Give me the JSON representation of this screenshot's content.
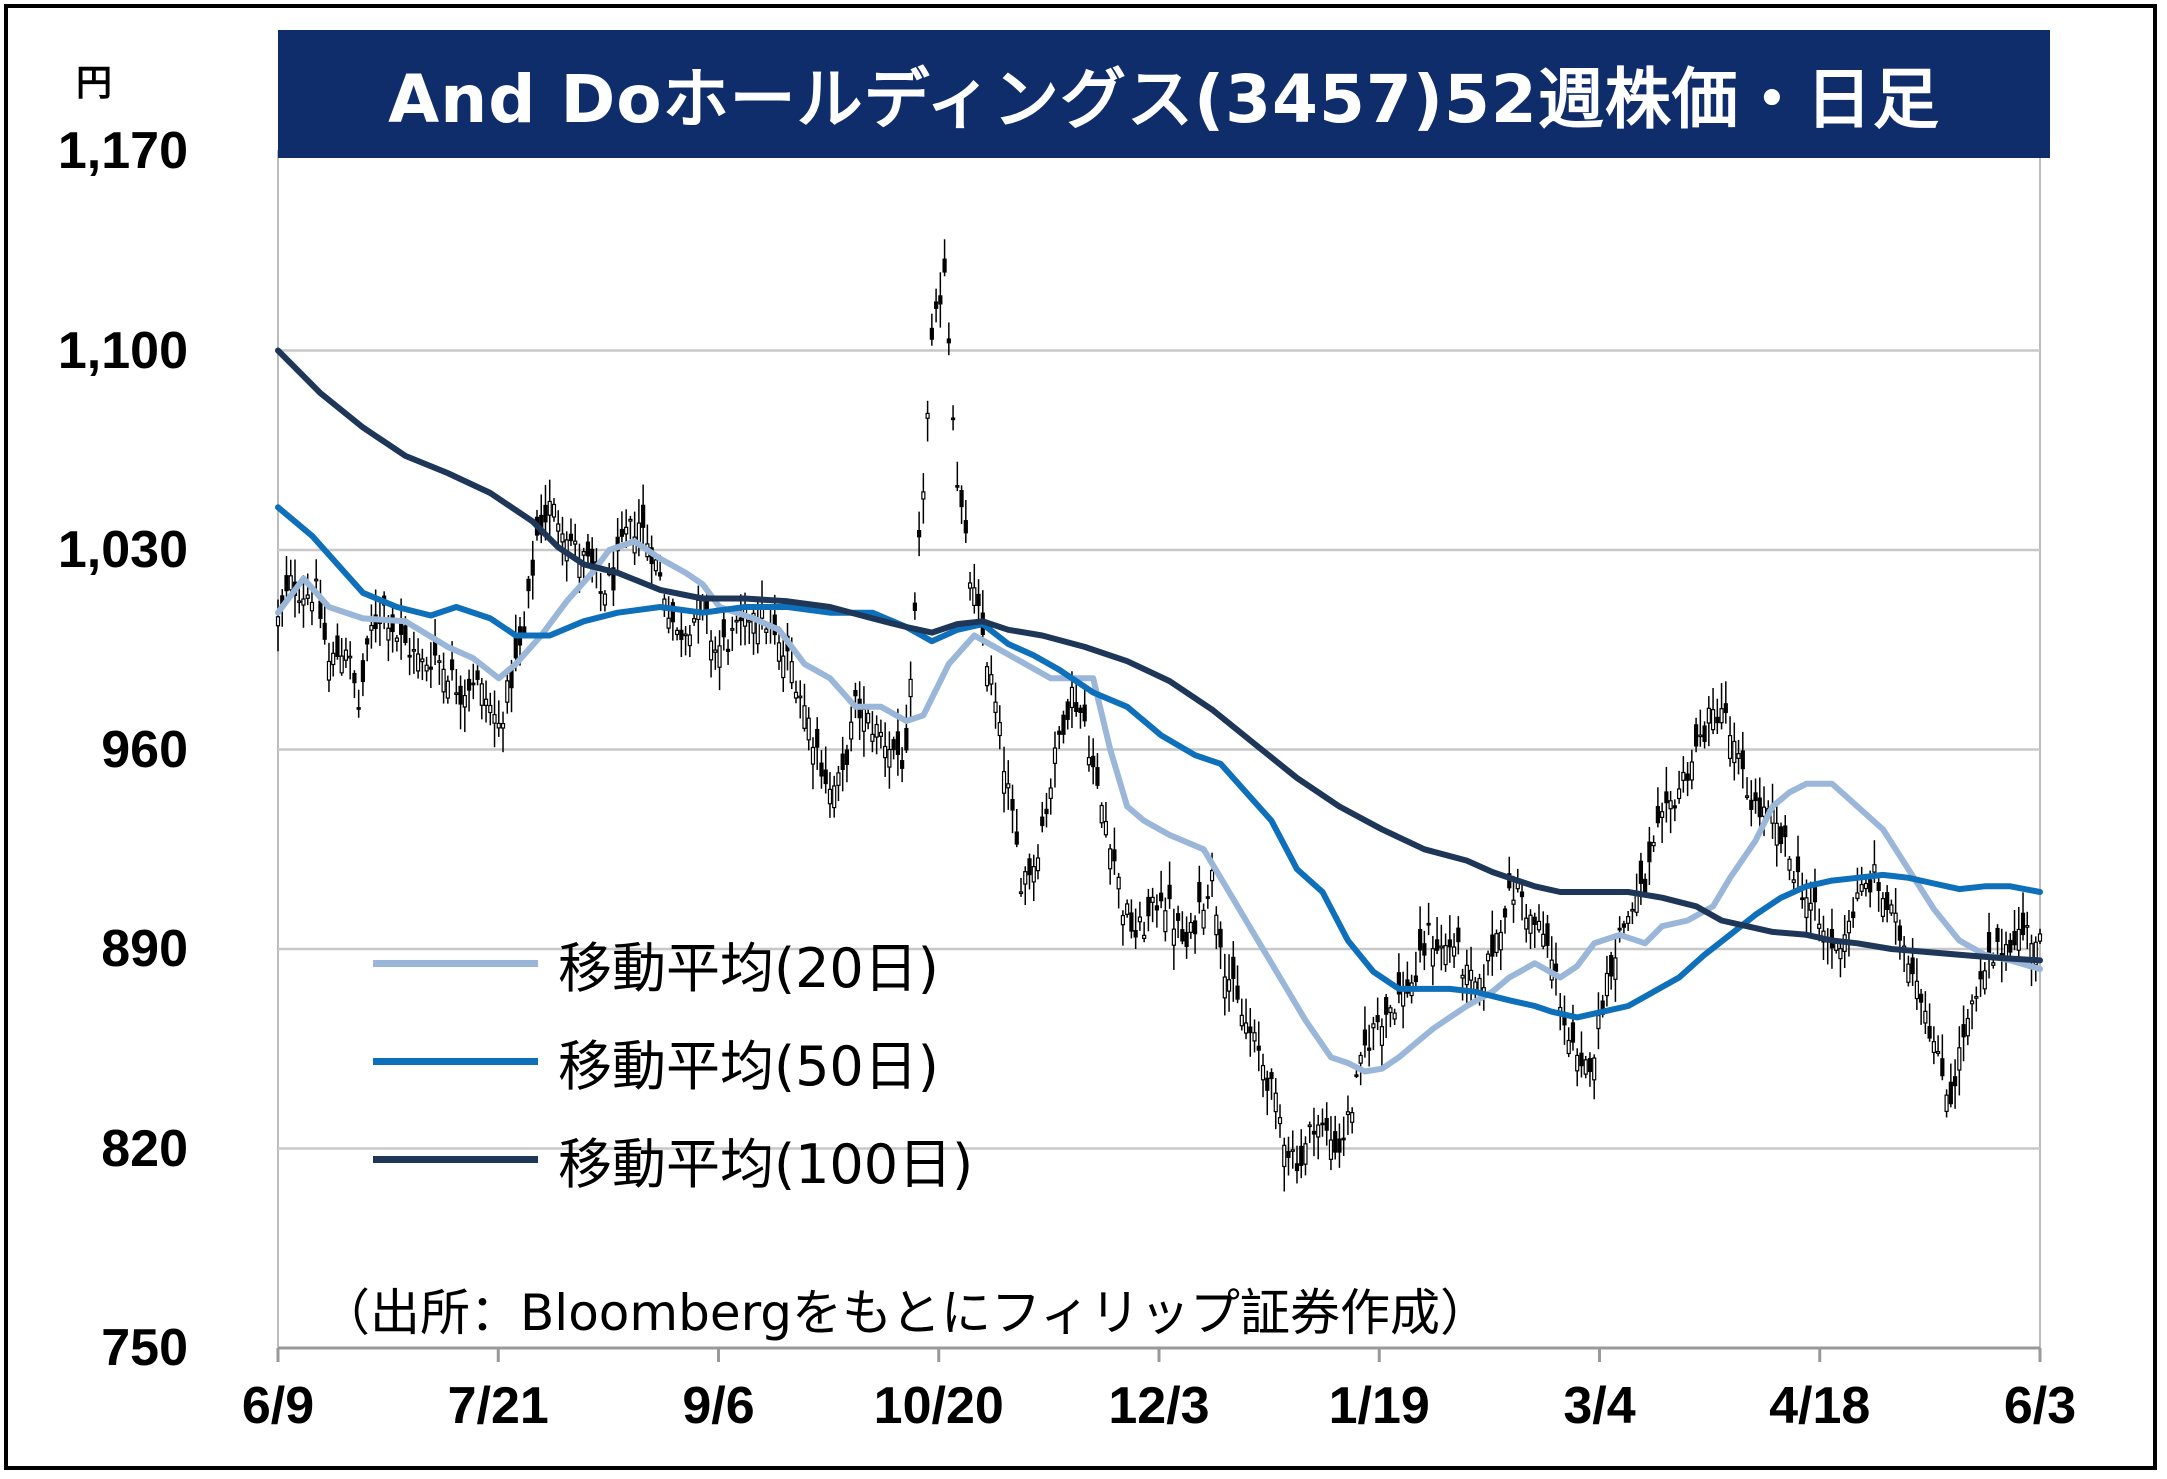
{
  "chart_data": {
    "type": "candlestick",
    "title": "And Doホールディングス(3457)52週株価・日足",
    "ylabel": "円",
    "ylim": [
      750,
      1170
    ],
    "yticks": [
      1170,
      1100,
      1030,
      960,
      890,
      820,
      750
    ],
    "ytick_labels": [
      "1,170",
      "1,100",
      "1,030",
      "960",
      "890",
      "820",
      "750"
    ],
    "xtick_labels": [
      "6/9",
      "7/21",
      "9/6",
      "10/20",
      "12/3",
      "1/19",
      "3/4",
      "4/18",
      "6/3"
    ],
    "grid": true,
    "legend_position": "lower-left",
    "source": "（出所：Bloombergをもとにフィリップ証券作成）",
    "close_anchors": [
      [
        0,
        1005
      ],
      [
        3,
        1018
      ],
      [
        6,
        1015
      ],
      [
        9,
        1015
      ],
      [
        12,
        990
      ],
      [
        16,
        997
      ],
      [
        19,
        975
      ],
      [
        22,
        1002
      ],
      [
        25,
        1010
      ],
      [
        28,
        1000
      ],
      [
        31,
        995
      ],
      [
        34,
        990
      ],
      [
        37,
        993
      ],
      [
        40,
        988
      ],
      [
        43,
        980
      ],
      [
        46,
        985
      ],
      [
        49,
        978
      ],
      [
        52,
        968
      ],
      [
        55,
        985
      ],
      [
        58,
        1000
      ],
      [
        61,
        1035
      ],
      [
        64,
        1045
      ],
      [
        67,
        1040
      ],
      [
        70,
        1030
      ],
      [
        73,
        1025
      ],
      [
        76,
        1015
      ],
      [
        79,
        1020
      ],
      [
        82,
        1035
      ],
      [
        85,
        1040
      ],
      [
        88,
        1030
      ],
      [
        91,
        1015
      ],
      [
        94,
        1000
      ],
      [
        97,
        1005
      ],
      [
        100,
        1010
      ],
      [
        103,
        995
      ],
      [
        106,
        998
      ],
      [
        109,
        1002
      ],
      [
        112,
        1010
      ],
      [
        115,
        1005
      ],
      [
        118,
        995
      ],
      [
        121,
        990
      ],
      [
        124,
        975
      ],
      [
        127,
        960
      ],
      [
        130,
        945
      ],
      [
        133,
        950
      ],
      [
        136,
        975
      ],
      [
        139,
        970
      ],
      [
        142,
        965
      ],
      [
        145,
        960
      ],
      [
        148,
        955
      ],
      [
        151,
        1030
      ],
      [
        154,
        1100
      ],
      [
        157,
        1130
      ],
      [
        160,
        1055
      ],
      [
        163,
        1020
      ],
      [
        166,
        1000
      ],
      [
        169,
        975
      ],
      [
        172,
        945
      ],
      [
        175,
        915
      ],
      [
        178,
        920
      ],
      [
        181,
        940
      ],
      [
        184,
        965
      ],
      [
        187,
        980
      ],
      [
        190,
        970
      ],
      [
        193,
        945
      ],
      [
        196,
        930
      ],
      [
        199,
        905
      ],
      [
        202,
        895
      ],
      [
        205,
        900
      ],
      [
        208,
        910
      ],
      [
        211,
        900
      ],
      [
        214,
        890
      ],
      [
        217,
        905
      ],
      [
        220,
        915
      ],
      [
        223,
        885
      ],
      [
        226,
        870
      ],
      [
        229,
        860
      ],
      [
        232,
        850
      ],
      [
        235,
        835
      ],
      [
        238,
        820
      ],
      [
        241,
        815
      ],
      [
        244,
        830
      ],
      [
        247,
        825
      ],
      [
        250,
        820
      ],
      [
        253,
        835
      ],
      [
        256,
        855
      ],
      [
        259,
        865
      ],
      [
        262,
        870
      ],
      [
        265,
        875
      ],
      [
        268,
        880
      ],
      [
        271,
        895
      ],
      [
        274,
        890
      ],
      [
        277,
        892
      ],
      [
        280,
        880
      ],
      [
        283,
        875
      ],
      [
        286,
        890
      ],
      [
        289,
        905
      ],
      [
        292,
        912
      ],
      [
        295,
        900
      ],
      [
        298,
        895
      ],
      [
        301,
        880
      ],
      [
        304,
        858
      ],
      [
        307,
        845
      ],
      [
        310,
        855
      ],
      [
        313,
        880
      ],
      [
        316,
        895
      ],
      [
        319,
        905
      ],
      [
        322,
        912
      ],
      [
        325,
        930
      ],
      [
        328,
        940
      ],
      [
        331,
        950
      ],
      [
        334,
        960
      ],
      [
        337,
        970
      ],
      [
        340,
        975
      ],
      [
        343,
        960
      ],
      [
        346,
        945
      ],
      [
        349,
        938
      ],
      [
        352,
        935
      ],
      [
        355,
        925
      ],
      [
        358,
        915
      ],
      [
        361,
        905
      ],
      [
        364,
        895
      ],
      [
        367,
        890
      ],
      [
        370,
        900
      ],
      [
        373,
        910
      ],
      [
        376,
        915
      ],
      [
        379,
        905
      ],
      [
        382,
        895
      ],
      [
        385,
        885
      ],
      [
        388,
        870
      ],
      [
        391,
        850
      ],
      [
        394,
        838
      ],
      [
        397,
        860
      ],
      [
        400,
        872
      ],
      [
        403,
        885
      ],
      [
        406,
        890
      ],
      [
        409,
        895
      ],
      [
        412,
        896
      ],
      [
        415,
        893
      ]
    ],
    "series": [
      {
        "name": "移動平均(20日)",
        "color": "#9ab6d9",
        "values": [
          [
            0,
            1008
          ],
          [
            6,
            1020
          ],
          [
            12,
            1010
          ],
          [
            20,
            1006
          ],
          [
            30,
            1005
          ],
          [
            40,
            996
          ],
          [
            46,
            992
          ],
          [
            52,
            985
          ],
          [
            56,
            990
          ],
          [
            62,
            1000
          ],
          [
            68,
            1012
          ],
          [
            74,
            1022
          ],
          [
            78,
            1030
          ],
          [
            84,
            1033
          ],
          [
            90,
            1027
          ],
          [
            96,
            1022
          ],
          [
            100,
            1018
          ],
          [
            104,
            1010
          ],
          [
            108,
            1008
          ],
          [
            112,
            1006
          ],
          [
            118,
            1002
          ],
          [
            124,
            990
          ],
          [
            130,
            985
          ],
          [
            136,
            975
          ],
          [
            142,
            975
          ],
          [
            148,
            970
          ],
          [
            152,
            972
          ],
          [
            158,
            990
          ],
          [
            164,
            1000
          ],
          [
            170,
            995
          ],
          [
            176,
            990
          ],
          [
            182,
            985
          ],
          [
            188,
            985
          ],
          [
            192,
            985
          ],
          [
            196,
            960
          ],
          [
            200,
            940
          ],
          [
            204,
            935
          ],
          [
            210,
            930
          ],
          [
            218,
            925
          ],
          [
            224,
            910
          ],
          [
            230,
            895
          ],
          [
            236,
            880
          ],
          [
            242,
            865
          ],
          [
            248,
            852
          ],
          [
            252,
            850
          ],
          [
            256,
            847
          ],
          [
            260,
            848
          ],
          [
            264,
            852
          ],
          [
            268,
            857
          ],
          [
            272,
            862
          ],
          [
            276,
            866
          ],
          [
            280,
            870
          ],
          [
            286,
            875
          ],
          [
            290,
            880
          ],
          [
            296,
            885
          ],
          [
            302,
            880
          ],
          [
            306,
            884
          ],
          [
            310,
            892
          ],
          [
            316,
            895
          ],
          [
            322,
            892
          ],
          [
            326,
            898
          ],
          [
            332,
            900
          ],
          [
            338,
            905
          ],
          [
            342,
            915
          ],
          [
            348,
            928
          ],
          [
            352,
            940
          ],
          [
            356,
            945
          ],
          [
            360,
            948
          ],
          [
            366,
            948
          ],
          [
            372,
            940
          ],
          [
            378,
            932
          ],
          [
            384,
            918
          ],
          [
            390,
            904
          ],
          [
            396,
            893
          ],
          [
            402,
            888
          ],
          [
            408,
            886
          ],
          [
            415,
            883
          ]
        ]
      },
      {
        "name": "移動平均(50日)",
        "color": "#0e6fba",
        "values": [
          [
            0,
            1045
          ],
          [
            8,
            1035
          ],
          [
            14,
            1025
          ],
          [
            20,
            1015
          ],
          [
            28,
            1010
          ],
          [
            36,
            1007
          ],
          [
            42,
            1010
          ],
          [
            50,
            1006
          ],
          [
            56,
            1000
          ],
          [
            64,
            1000
          ],
          [
            72,
            1005
          ],
          [
            80,
            1008
          ],
          [
            90,
            1010
          ],
          [
            100,
            1008
          ],
          [
            110,
            1010
          ],
          [
            120,
            1010
          ],
          [
            130,
            1008
          ],
          [
            140,
            1008
          ],
          [
            148,
            1003
          ],
          [
            154,
            998
          ],
          [
            160,
            1002
          ],
          [
            166,
            1004
          ],
          [
            172,
            997
          ],
          [
            178,
            993
          ],
          [
            184,
            988
          ],
          [
            192,
            980
          ],
          [
            200,
            975
          ],
          [
            208,
            965
          ],
          [
            216,
            958
          ],
          [
            222,
            955
          ],
          [
            228,
            945
          ],
          [
            234,
            935
          ],
          [
            240,
            918
          ],
          [
            246,
            910
          ],
          [
            252,
            893
          ],
          [
            258,
            882
          ],
          [
            264,
            876
          ],
          [
            270,
            876
          ],
          [
            276,
            876
          ],
          [
            282,
            875
          ],
          [
            290,
            872
          ],
          [
            296,
            870
          ],
          [
            300,
            868
          ],
          [
            306,
            866
          ],
          [
            312,
            868
          ],
          [
            318,
            870
          ],
          [
            324,
            875
          ],
          [
            330,
            880
          ],
          [
            336,
            888
          ],
          [
            342,
            895
          ],
          [
            348,
            902
          ],
          [
            354,
            908
          ],
          [
            360,
            912
          ],
          [
            366,
            914
          ],
          [
            372,
            915
          ],
          [
            378,
            916
          ],
          [
            384,
            915
          ],
          [
            390,
            913
          ],
          [
            396,
            911
          ],
          [
            402,
            912
          ],
          [
            408,
            912
          ],
          [
            415,
            910
          ]
        ]
      },
      {
        "name": "移動平均(100日)",
        "color": "#1e3657",
        "values": [
          [
            0,
            1100
          ],
          [
            10,
            1085
          ],
          [
            20,
            1073
          ],
          [
            30,
            1063
          ],
          [
            40,
            1057
          ],
          [
            50,
            1050
          ],
          [
            60,
            1040
          ],
          [
            66,
            1031
          ],
          [
            72,
            1025
          ],
          [
            80,
            1022
          ],
          [
            90,
            1016
          ],
          [
            100,
            1013
          ],
          [
            110,
            1013
          ],
          [
            120,
            1012
          ],
          [
            130,
            1010
          ],
          [
            140,
            1006
          ],
          [
            148,
            1003
          ],
          [
            154,
            1001
          ],
          [
            160,
            1004
          ],
          [
            166,
            1005
          ],
          [
            172,
            1002
          ],
          [
            180,
            1000
          ],
          [
            190,
            996
          ],
          [
            200,
            991
          ],
          [
            210,
            984
          ],
          [
            220,
            974
          ],
          [
            230,
            962
          ],
          [
            240,
            950
          ],
          [
            250,
            940
          ],
          [
            260,
            932
          ],
          [
            270,
            925
          ],
          [
            280,
            921
          ],
          [
            286,
            917
          ],
          [
            290,
            915
          ],
          [
            296,
            912
          ],
          [
            302,
            910
          ],
          [
            310,
            910
          ],
          [
            318,
            910
          ],
          [
            326,
            908
          ],
          [
            334,
            905
          ],
          [
            340,
            900
          ],
          [
            346,
            898
          ],
          [
            352,
            896
          ],
          [
            360,
            895
          ],
          [
            366,
            893
          ],
          [
            372,
            892
          ],
          [
            380,
            890
          ],
          [
            388,
            889
          ],
          [
            396,
            888
          ],
          [
            404,
            887
          ],
          [
            415,
            886
          ]
        ]
      }
    ]
  }
}
